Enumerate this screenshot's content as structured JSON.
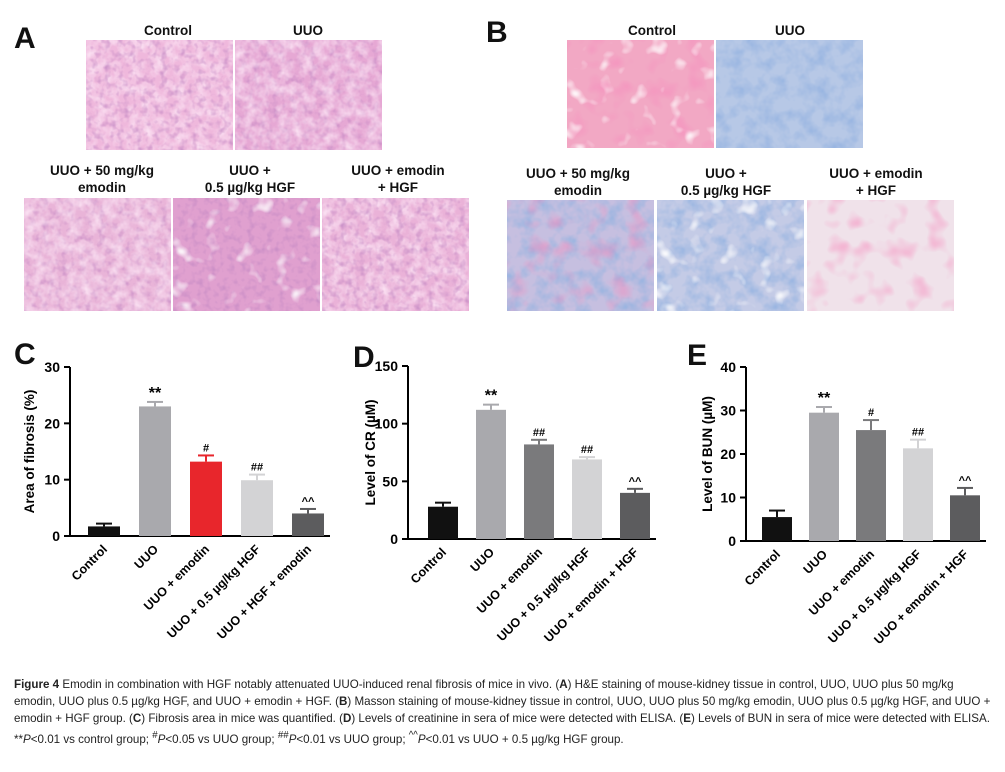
{
  "panelA": {
    "letter": "A",
    "labels": {
      "control": "Control",
      "uuo": "UUO",
      "emodin_l1": "UUO + 50 mg/kg",
      "emodin_l2": "emodin",
      "hgf_l1": "UUO +",
      "hgf_l2": "0.5 µg/kg HGF",
      "combo_l1": "UUO + emodin",
      "combo_l2": "+ HGF"
    }
  },
  "panelB": {
    "letter": "B",
    "labels": {
      "control": "Control",
      "uuo": "UUO",
      "emodin_l1": "UUO + 50 mg/kg",
      "emodin_l2": "emodin",
      "hgf_l1": "UUO +",
      "hgf_l2": "0.5 µg/kg HGF",
      "combo_l1": "UUO + emodin",
      "combo_l2": "+ HGF"
    }
  },
  "colors": {
    "he_pink": "#e49bcd",
    "masson_blue": "#a3b8dd",
    "bar_control": "#111111",
    "bar_uuo": "#a9a9ad",
    "bar_emodin_red": "#e8262c",
    "bar_emodin_gray": "#7a7a7c",
    "bar_hgf": "#d3d3d5",
    "bar_combo": "#5c5c5e"
  },
  "chart_data": [
    {
      "panel": "C",
      "type": "bar",
      "categories": [
        "Control",
        "UUO",
        "UUO + emodin",
        "UUO + 0.5 µg/kg HGF",
        "UUO + HGF + emodin"
      ],
      "values": [
        1.7,
        23,
        13.2,
        9.9,
        4.0
      ],
      "errors": [
        0.5,
        0.8,
        1.1,
        1.0,
        0.8
      ],
      "annotations": [
        "",
        "**",
        "#",
        "##",
        "^^"
      ],
      "colors": [
        "#111111",
        "#a9a9ad",
        "#e8262c",
        "#d3d3d5",
        "#5c5c5e"
      ],
      "ylabel": "Area of fibrosis (%)",
      "ylim": [
        0,
        30
      ],
      "yticks": [
        0,
        10,
        20,
        30
      ]
    },
    {
      "panel": "D",
      "type": "bar",
      "categories": [
        "Control",
        "UUO",
        "UUO + emodin",
        "UUO + 0.5 µg/kg HGF",
        "UUO + emodin + HGF"
      ],
      "values": [
        28,
        112,
        82,
        69,
        40
      ],
      "errors": [
        3.5,
        4.5,
        4.0,
        2.0,
        3.5
      ],
      "annotations": [
        "",
        "**",
        "##",
        "##",
        "^^"
      ],
      "colors": [
        "#111111",
        "#a9a9ad",
        "#7a7a7c",
        "#d3d3d5",
        "#5c5c5e"
      ],
      "ylabel": "Level of CR (µM)",
      "ylim": [
        0,
        150
      ],
      "yticks": [
        0,
        50,
        100,
        150
      ]
    },
    {
      "panel": "E",
      "type": "bar",
      "categories": [
        "Control",
        "UUO",
        "UUO + emodin",
        "UUO + 0.5 µg/kg HGF",
        "UUO + emodin + HGF"
      ],
      "values": [
        5.5,
        29.5,
        25.5,
        21.3,
        10.5
      ],
      "errors": [
        1.5,
        1.3,
        2.3,
        2.0,
        1.7
      ],
      "annotations": [
        "",
        "**",
        "#",
        "##",
        "^^"
      ],
      "colors": [
        "#111111",
        "#a9a9ad",
        "#7a7a7c",
        "#d3d3d5",
        "#5c5c5e"
      ],
      "ylabel": "Level of BUN (µM)",
      "ylim": [
        0,
        40
      ],
      "yticks": [
        0,
        10,
        20,
        30,
        40
      ]
    }
  ],
  "caption": {
    "figure_label": "Figure 4",
    "title": "Emodin in combination with HGF notably attenuated UUO-induced renal fibrosis of mice in vivo.",
    "p1a": "(",
    "A": "A",
    "p1b": ") H&E staining of mouse-kidney tissue in control, UUO, UUO plus 50 mg/kg emodin, UUO plus 0.5 µg/kg HGF, and UUO + emodin + HGF. (",
    "B": "B",
    "p2": ") Masson staining of mouse-kidney tissue in control, UUO, UUO plus 50 mg/kg emodin, UUO plus 0.5 µg/kg HGF, and UUO + emodin + HGF group. (",
    "C": "C",
    "p3": ") Fibrosis area in mice was quantified. (",
    "D": "D",
    "p4": ") Levels of creatinine in sera of mice were detected with ELISA. (",
    "E": "E",
    "p5": ") Levels of BUN in sera of mice were detected with ELISA. **",
    "P1": "P",
    "p6": "<0.01 vs control group; ",
    "sup1": "#",
    "P2": "P",
    "p7": "<0.05 vs UUO group; ",
    "sup2": "##",
    "P3": "P",
    "p8": "<0.01 vs UUO group; ",
    "sup3": "^^",
    "P4": "P",
    "p9": "<0.01 vs UUO + 0.5 µg/kg HGF group."
  }
}
